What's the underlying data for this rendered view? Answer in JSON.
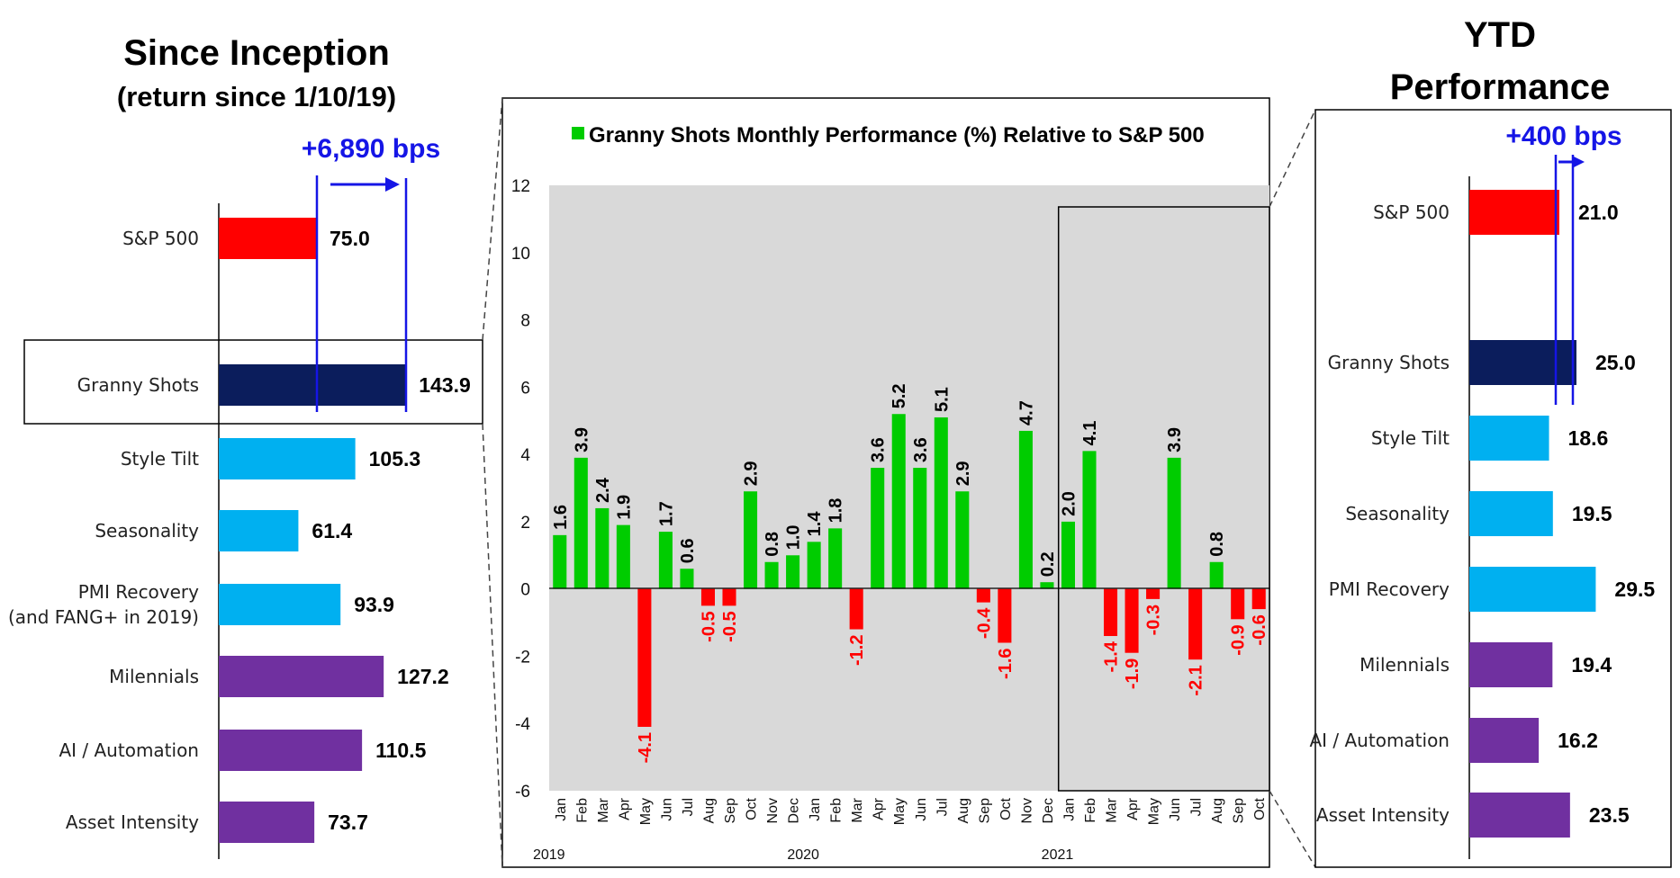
{
  "colors": {
    "sp500": "#ff0000",
    "granny": "#0b1d5c",
    "style": "#00b0f0",
    "thematic": "#7030a0",
    "positive": "#00cc00",
    "negative": "#ff0000",
    "plot_bg": "#d9d9d9",
    "bps_blue": "#1515e6"
  },
  "chart_data": [
    {
      "type": "bar",
      "orientation": "horizontal",
      "title": "Since Inception",
      "subtitle": "(return since 1/10/19)",
      "annotation": "+6,890 bps",
      "categories": [
        "S&P 500",
        "Granny Shots",
        "Style Tilt",
        "Seasonality",
        "PMI Recovery\n(and FANG+ in 2019)",
        "Milennials",
        "AI / Automation",
        "Asset Intensity"
      ],
      "values": [
        75.0,
        143.9,
        105.3,
        61.4,
        93.9,
        127.2,
        110.5,
        73.7
      ],
      "value_labels": [
        "75.0",
        "143.9",
        "105.3",
        "61.4",
        "93.9",
        "127.2",
        "110.5",
        "73.7"
      ],
      "bar_colors": [
        "sp500",
        "granny",
        "style",
        "style",
        "style",
        "thematic",
        "thematic",
        "thematic"
      ]
    },
    {
      "type": "bar",
      "title": "Granny Shots Monthly Performance (%) Relative to S&P 500",
      "legend": "Granny Shots Monthly Performance (%) Relative to S&P 500",
      "ylim": [
        -6,
        12
      ],
      "yticks": [
        -6,
        -4,
        -2,
        0,
        2,
        4,
        6,
        8,
        10,
        12
      ],
      "grid": false,
      "categories": [
        "Jan",
        "Feb",
        "Mar",
        "Apr",
        "May",
        "Jun",
        "Jul",
        "Aug",
        "Sep",
        "Oct",
        "Nov",
        "Dec",
        "Jan",
        "Feb",
        "Mar",
        "Apr",
        "May",
        "Jun",
        "Jul",
        "Aug",
        "Sep",
        "Oct",
        "Nov",
        "Dec",
        "Jan",
        "Feb",
        "Mar",
        "Apr",
        "May",
        "Jun",
        "Jul",
        "Aug",
        "Sep",
        "Oct"
      ],
      "values": [
        1.6,
        3.9,
        2.4,
        1.9,
        -4.1,
        1.7,
        0.6,
        -0.5,
        -0.5,
        2.9,
        0.8,
        1.0,
        1.4,
        1.8,
        -1.2,
        3.6,
        5.2,
        3.6,
        5.1,
        2.9,
        -0.4,
        -1.6,
        4.7,
        0.2,
        2.0,
        4.1,
        -1.4,
        -1.9,
        -0.3,
        3.9,
        -2.1,
        0.8,
        -0.9,
        -0.6
      ],
      "value_labels": [
        "1.6",
        "3.9",
        "2.4",
        "1.9",
        "-4.1",
        "1.7",
        "0.6",
        "-0.5",
        "-0.5",
        "2.9",
        "0.8",
        "1.0",
        "1.4",
        "1.8",
        "-1.2",
        "3.6",
        "5.2",
        "3.6",
        "5.1",
        "2.9",
        "-0.4",
        "-1.6",
        "4.7",
        "0.2",
        "2.0",
        "4.1",
        "-1.4",
        "-1.9",
        "-0.3",
        "3.9",
        "-2.1",
        "0.8",
        "-0.9",
        "-0.6"
      ],
      "years": [
        {
          "label": "2019",
          "start_index": 0
        },
        {
          "label": "2020",
          "start_index": 12
        },
        {
          "label": "2021",
          "start_index": 24
        }
      ],
      "highlight_start_index": 24
    },
    {
      "type": "bar",
      "orientation": "horizontal",
      "title": "YTD",
      "subtitle": "Performance",
      "annotation": "+400 bps",
      "categories": [
        "S&P 500",
        "Granny Shots",
        "Style Tilt",
        "Seasonality",
        "PMI Recovery",
        "Milennials",
        "AI / Automation",
        "Asset Intensity"
      ],
      "values": [
        21.0,
        25.0,
        18.6,
        19.5,
        29.5,
        19.4,
        16.2,
        23.5
      ],
      "value_labels": [
        "21.0",
        "25.0",
        "18.6",
        "19.5",
        "29.5",
        "19.4",
        "16.2",
        "23.5"
      ],
      "bar_colors": [
        "sp500",
        "granny",
        "style",
        "style",
        "style",
        "thematic",
        "thematic",
        "thematic"
      ]
    }
  ]
}
